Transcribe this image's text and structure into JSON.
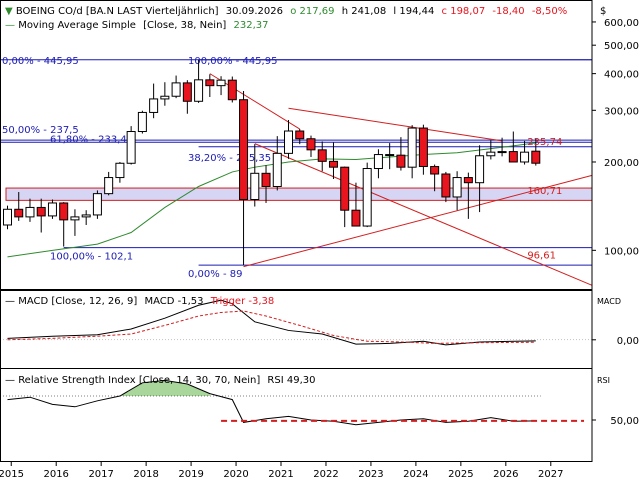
{
  "header": {
    "instrument": "BOEING CO/d [BA.N LAST Vierteljährlich]",
    "date": "30.09.2026",
    "open": "o 217,69",
    "high": "h 241,08",
    "low": "l 194,44",
    "close": "c 198,07",
    "change": "-18,40",
    "change_pct": "-8,50%",
    "ma_label": "Moving Average Simple",
    "ma_params": "[Close, 38, Nein]",
    "ma_value": "232,37",
    "currency": "$"
  },
  "colors": {
    "up_candle": "#ffffff",
    "down_candle": "#e8141e",
    "ma_line": "#2e8b2e",
    "fib_line": "#1c1cb4",
    "trend_line": "#d21e1e",
    "band_fill": "#d6d6f4",
    "macd_line": "#000000",
    "trigger_line": "#d21e1e",
    "rsi_line": "#000000",
    "rsi_fill": "#a9d69b"
  },
  "chart_data": [
    {
      "type": "candlestick",
      "scale": "log",
      "ylim": [
        75,
        680
      ],
      "x_range": [
        "2014-10",
        "2027-12"
      ],
      "yticks": [
        "600,00",
        "500,00",
        "400,00",
        "300,00",
        "200,00",
        "100,00"
      ],
      "ytick_values": [
        600,
        500,
        400,
        300,
        200,
        100
      ],
      "xticks": [
        "2015",
        "2016",
        "2017",
        "2018",
        "2019",
        "2020",
        "2021",
        "2022",
        "2023",
        "2024",
        "2025",
        "2026",
        "2027"
      ],
      "grid": false,
      "candles": [
        {
          "d": "2014-12",
          "o": 122,
          "h": 142,
          "l": 118,
          "c": 138
        },
        {
          "d": "2015-03",
          "o": 138,
          "h": 158,
          "l": 126,
          "c": 130
        },
        {
          "d": "2015-06",
          "o": 130,
          "h": 150,
          "l": 125,
          "c": 140
        },
        {
          "d": "2015-09",
          "o": 140,
          "h": 150,
          "l": 115,
          "c": 131
        },
        {
          "d": "2015-12",
          "o": 131,
          "h": 149,
          "l": 128,
          "c": 145
        },
        {
          "d": "2016-03",
          "o": 145,
          "h": 146,
          "l": 103,
          "c": 127
        },
        {
          "d": "2016-06",
          "o": 127,
          "h": 138,
          "l": 112,
          "c": 130
        },
        {
          "d": "2016-09",
          "o": 130,
          "h": 137,
          "l": 122,
          "c": 132
        },
        {
          "d": "2016-12",
          "o": 132,
          "h": 160,
          "l": 128,
          "c": 156
        },
        {
          "d": "2017-03",
          "o": 156,
          "h": 185,
          "l": 154,
          "c": 177
        },
        {
          "d": "2017-06",
          "o": 177,
          "h": 200,
          "l": 170,
          "c": 198
        },
        {
          "d": "2017-09",
          "o": 198,
          "h": 265,
          "l": 196,
          "c": 254
        },
        {
          "d": "2017-12",
          "o": 254,
          "h": 299,
          "l": 250,
          "c": 295
        },
        {
          "d": "2018-03",
          "o": 295,
          "h": 370,
          "l": 282,
          "c": 328
        },
        {
          "d": "2018-06",
          "o": 328,
          "h": 374,
          "l": 311,
          "c": 335
        },
        {
          "d": "2018-09",
          "o": 335,
          "h": 394,
          "l": 330,
          "c": 372
        },
        {
          "d": "2018-12",
          "o": 372,
          "h": 380,
          "l": 292,
          "c": 322
        },
        {
          "d": "2019-03",
          "o": 322,
          "h": 446,
          "l": 318,
          "c": 381
        },
        {
          "d": "2019-06",
          "o": 381,
          "h": 398,
          "l": 333,
          "c": 364
        },
        {
          "d": "2019-09",
          "o": 364,
          "h": 392,
          "l": 338,
          "c": 380
        },
        {
          "d": "2019-12",
          "o": 380,
          "h": 391,
          "l": 319,
          "c": 326
        },
        {
          "d": "2020-03",
          "o": 326,
          "h": 349,
          "l": 89,
          "c": 149
        },
        {
          "d": "2020-06",
          "o": 149,
          "h": 230,
          "l": 141,
          "c": 183
        },
        {
          "d": "2020-09",
          "o": 183,
          "h": 195,
          "l": 145,
          "c": 165
        },
        {
          "d": "2020-12",
          "o": 165,
          "h": 245,
          "l": 160,
          "c": 214
        },
        {
          "d": "2021-03",
          "o": 214,
          "h": 278,
          "l": 205,
          "c": 255
        },
        {
          "d": "2021-06",
          "o": 255,
          "h": 259,
          "l": 230,
          "c": 240
        },
        {
          "d": "2021-09",
          "o": 240,
          "h": 246,
          "l": 208,
          "c": 220
        },
        {
          "d": "2021-12",
          "o": 220,
          "h": 235,
          "l": 186,
          "c": 201
        },
        {
          "d": "2022-03",
          "o": 201,
          "h": 233,
          "l": 175,
          "c": 192
        },
        {
          "d": "2022-06",
          "o": 192,
          "h": 193,
          "l": 120,
          "c": 137
        },
        {
          "d": "2022-09",
          "o": 137,
          "h": 170,
          "l": 121,
          "c": 121
        },
        {
          "d": "2022-12",
          "o": 121,
          "h": 199,
          "l": 120,
          "c": 190
        },
        {
          "d": "2023-03",
          "o": 190,
          "h": 221,
          "l": 176,
          "c": 212
        },
        {
          "d": "2023-06",
          "o": 212,
          "h": 232,
          "l": 189,
          "c": 211
        },
        {
          "d": "2023-09",
          "o": 211,
          "h": 243,
          "l": 187,
          "c": 192
        },
        {
          "d": "2023-12",
          "o": 192,
          "h": 267,
          "l": 176,
          "c": 261
        },
        {
          "d": "2024-03",
          "o": 261,
          "h": 268,
          "l": 181,
          "c": 193
        },
        {
          "d": "2024-06",
          "o": 193,
          "h": 196,
          "l": 159,
          "c": 182
        },
        {
          "d": "2024-09",
          "o": 182,
          "h": 185,
          "l": 146,
          "c": 152
        },
        {
          "d": "2024-12",
          "o": 152,
          "h": 186,
          "l": 137,
          "c": 177
        },
        {
          "d": "2025-03",
          "o": 177,
          "h": 184,
          "l": 128,
          "c": 170
        },
        {
          "d": "2025-06",
          "o": 170,
          "h": 228,
          "l": 135,
          "c": 210
        },
        {
          "d": "2025-09",
          "o": 210,
          "h": 237,
          "l": 204,
          "c": 216
        },
        {
          "d": "2025-12",
          "o": 216,
          "h": 242,
          "l": 209,
          "c": 217
        },
        {
          "d": "2026-03",
          "o": 217,
          "h": 254,
          "l": 201,
          "c": 200
        },
        {
          "d": "2026-06",
          "o": 200,
          "h": 236,
          "l": 196,
          "c": 216
        },
        {
          "d": "2026-09",
          "o": 217.69,
          "h": 241.08,
          "l": 194.44,
          "c": 198.07
        }
      ],
      "moving_average": [
        [
          "2014-12",
          95
        ],
        [
          "2015-12",
          100
        ],
        [
          "2016-12",
          105
        ],
        [
          "2017-09",
          115
        ],
        [
          "2018-06",
          140
        ],
        [
          "2019-03",
          165
        ],
        [
          "2019-12",
          185
        ],
        [
          "2020-06",
          192
        ],
        [
          "2021-03",
          200
        ],
        [
          "2021-12",
          205
        ],
        [
          "2022-09",
          204
        ],
        [
          "2023-06",
          208
        ],
        [
          "2024-03",
          212
        ],
        [
          "2024-12",
          215
        ],
        [
          "2025-09",
          222
        ],
        [
          "2026-09",
          232.37
        ]
      ],
      "fib_levels": [
        {
          "label": "0,00% - 445,95",
          "value": 445.95,
          "from": "2014-10",
          "to": "2027-12"
        },
        {
          "label": "50,00% - 237,5",
          "value": 237.5,
          "from": "2014-10",
          "to": "2027-12"
        },
        {
          "label": "61,80% - 233,45",
          "value": 233.45,
          "from": "2014-10",
          "to": "2027-12"
        },
        {
          "label": "100,00% - 102,1",
          "value": 102.1,
          "from": "2016-03",
          "to": "2027-12"
        },
        {
          "label": "100,00% - 445,95",
          "value": 445.95,
          "from": "2019-03",
          "to": "2027-12"
        },
        {
          "label": "38,20% - 225,35",
          "value": 225.35,
          "from": "2019-03",
          "to": "2027-12"
        },
        {
          "label": "0,00% - 89",
          "value": 89,
          "from": "2019-03",
          "to": "2027-12"
        }
      ],
      "support_band": {
        "low": 148,
        "high": 163
      },
      "trend_lines": [
        {
          "from": [
            "2019-06",
            400
          ],
          "to": [
            "2021-06",
            259
          ]
        },
        {
          "from": [
            "2021-03",
            305
          ],
          "to": [
            "2025-12",
            236
          ]
        },
        {
          "from": [
            "2020-06",
            231
          ],
          "to": [
            "2027-12",
            76
          ]
        },
        {
          "from": [
            "2020-03",
            88
          ],
          "to": [
            "2027-12",
            180
          ]
        }
      ],
      "price_labels": [
        {
          "text": "235,74",
          "value": 235.74,
          "at": "2026-03"
        },
        {
          "text": "160,71",
          "value": 160.71,
          "at": "2026-03"
        },
        {
          "text": "96,61",
          "value": 96.61,
          "at": "2026-03"
        }
      ]
    },
    {
      "type": "line",
      "title": "MACD [Close, 12, 26, 9]",
      "macd_label": "MACD -1,53",
      "trigger_label": "Trigger -3,38",
      "ylim": [
        -35,
        65
      ],
      "yticks": [
        "0,00"
      ],
      "ytick_values": [
        0
      ],
      "series": [
        {
          "name": "MACD",
          "values": [
            [
              "2014-12",
              2
            ],
            [
              "2015-12",
              5
            ],
            [
              "2016-12",
              7
            ],
            [
              "2017-09",
              15
            ],
            [
              "2018-06",
              30
            ],
            [
              "2019-03",
              48
            ],
            [
              "2019-09",
              55
            ],
            [
              "2019-12",
              50
            ],
            [
              "2020-06",
              25
            ],
            [
              "2021-03",
              13
            ],
            [
              "2021-12",
              8
            ],
            [
              "2022-09",
              -6
            ],
            [
              "2023-06",
              -5
            ],
            [
              "2024-03",
              -2
            ],
            [
              "2024-09",
              -7
            ],
            [
              "2025-06",
              -3
            ],
            [
              "2026-09",
              -1.53
            ]
          ]
        },
        {
          "name": "Trigger",
          "values": [
            [
              "2014-12",
              0
            ],
            [
              "2015-12",
              2
            ],
            [
              "2016-12",
              5
            ],
            [
              "2017-09",
              8
            ],
            [
              "2018-06",
              20
            ],
            [
              "2019-03",
              33
            ],
            [
              "2019-09",
              38
            ],
            [
              "2020-03",
              40
            ],
            [
              "2020-09",
              33
            ],
            [
              "2021-06",
              20
            ],
            [
              "2022-03",
              6
            ],
            [
              "2022-12",
              -2
            ],
            [
              "2023-09",
              -3
            ],
            [
              "2024-06",
              -5
            ],
            [
              "2025-06",
              -4
            ],
            [
              "2026-09",
              -3.38
            ]
          ]
        }
      ]
    },
    {
      "type": "line",
      "title": "Relative Strength Index [Close, 14, 30, 70, Nein]",
      "rsi_label": "RSI 49,30",
      "ylim": [
        15,
        90
      ],
      "yticks": [
        "50,00"
      ],
      "ytick_values": [
        50
      ],
      "overbought": 70,
      "series": [
        {
          "name": "RSI",
          "values": [
            [
              "2014-12",
              67
            ],
            [
              "2015-06",
              69
            ],
            [
              "2015-12",
              63
            ],
            [
              "2016-06",
              61
            ],
            [
              "2016-12",
              66
            ],
            [
              "2017-06",
              70
            ],
            [
              "2017-12",
              81
            ],
            [
              "2018-06",
              83
            ],
            [
              "2018-12",
              80
            ],
            [
              "2019-06",
              72
            ],
            [
              "2019-12",
              67
            ],
            [
              "2020-03",
              48
            ],
            [
              "2020-09",
              51
            ],
            [
              "2021-03",
              53
            ],
            [
              "2021-09",
              50
            ],
            [
              "2022-03",
              49
            ],
            [
              "2022-09",
              46
            ],
            [
              "2023-03",
              48
            ],
            [
              "2023-09",
              50
            ],
            [
              "2024-03",
              51
            ],
            [
              "2024-09",
              48
            ],
            [
              "2025-03",
              49
            ],
            [
              "2025-09",
              52
            ],
            [
              "2026-03",
              49
            ],
            [
              "2026-09",
              49.3
            ]
          ]
        }
      ]
    }
  ]
}
